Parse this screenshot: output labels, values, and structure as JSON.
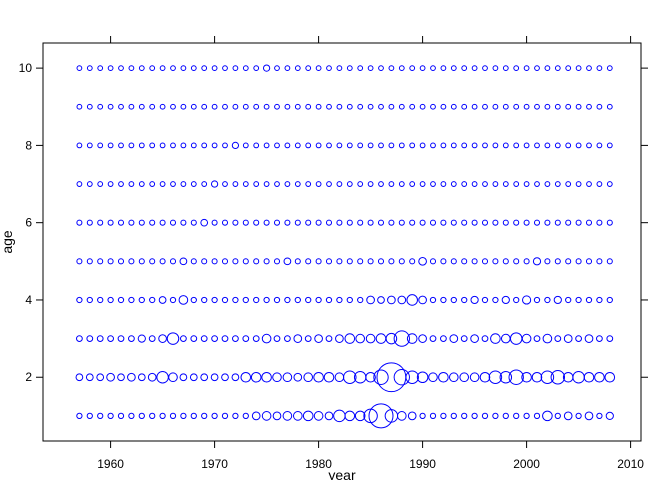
{
  "chart_data": {
    "type": "scatter",
    "subtype": "bubble",
    "xlabel": "year",
    "ylabel": "age",
    "xlim": [
      1953.5,
      2011
    ],
    "ylim": [
      0.35,
      10.65
    ],
    "x_ticks": [
      1960,
      1970,
      1980,
      1990,
      2000,
      2010
    ],
    "x_tick_labels": [
      "1960",
      "1970",
      "1980",
      "1990",
      "2000",
      "2010"
    ],
    "y_ticks": [
      2,
      4,
      6,
      8,
      10
    ],
    "y_tick_labels": [
      "2",
      "4",
      "6",
      "8",
      "10"
    ],
    "ticks_mirrored": true,
    "grid": false,
    "marker": "open-circle",
    "marker_color": "#0000ff",
    "years": [
      1957,
      2008
    ],
    "ages": [
      1,
      2,
      3,
      4,
      5,
      6,
      7,
      8,
      9,
      10
    ],
    "size_scale": {
      "small": 1,
      "medium": 2,
      "large": 3,
      "xlarge": 4,
      "max": 6
    },
    "default_sizes_by_age": {
      "1": 1.1,
      "2": 1.4,
      "3": 1.2,
      "4": 1.1,
      "5": 1.05,
      "6": 1.05,
      "7": 1.0,
      "8": 1.0,
      "9": 1.0,
      "10": 1.0
    },
    "size_overrides": {
      "1": {
        "1974": 1.6,
        "1975": 1.8,
        "1976": 1.6,
        "1977": 1.8,
        "1978": 1.8,
        "1979": 2.0,
        "1980": 1.8,
        "1981": 1.6,
        "1982": 2.4,
        "1983": 2.0,
        "1984": 2.0,
        "1985": 2.8,
        "1986": 5.0,
        "1987": 2.6,
        "1988": 1.8,
        "1989": 1.6,
        "2002": 2.0,
        "2004": 1.6,
        "2006": 1.6,
        "2008": 1.5
      },
      "2": {
        "1960": 1.6,
        "1962": 1.6,
        "1964": 1.6,
        "1965": 2.4,
        "1966": 1.8,
        "1973": 2.0,
        "1974": 2.0,
        "1975": 2.0,
        "1976": 1.8,
        "1977": 1.8,
        "1978": 1.6,
        "1979": 1.8,
        "1980": 2.0,
        "1981": 2.0,
        "1982": 1.8,
        "1983": 2.6,
        "1984": 2.4,
        "1985": 2.0,
        "1986": 3.0,
        "1987": 6.0,
        "1988": 3.2,
        "1989": 2.6,
        "1990": 2.2,
        "1991": 1.8,
        "1992": 2.0,
        "1993": 1.8,
        "1994": 1.8,
        "1995": 1.8,
        "1996": 2.0,
        "1997": 2.6,
        "1998": 2.4,
        "1999": 3.0,
        "2000": 2.0,
        "2001": 2.0,
        "2002": 2.6,
        "2003": 2.8,
        "2004": 2.0,
        "2005": 2.4,
        "2006": 2.0,
        "2007": 2.0,
        "2008": 2.0
      },
      "3": {
        "1963": 1.5,
        "1965": 1.6,
        "1966": 2.4,
        "1975": 1.8,
        "1978": 1.6,
        "1980": 1.6,
        "1982": 1.6,
        "1983": 2.0,
        "1984": 1.8,
        "1985": 1.8,
        "1986": 2.0,
        "1987": 2.2,
        "1988": 3.2,
        "1989": 2.0,
        "1990": 1.6,
        "1993": 1.6,
        "1995": 1.6,
        "1997": 2.0,
        "1998": 1.8,
        "1999": 2.4,
        "2000": 1.8,
        "2002": 1.8,
        "2004": 1.6,
        "2006": 1.6
      },
      "4": {
        "1965": 1.4,
        "1967": 1.8,
        "1985": 1.6,
        "1986": 1.4,
        "1987": 1.6,
        "1988": 1.6,
        "1989": 2.2,
        "1990": 1.6,
        "1995": 1.5,
        "1998": 1.5,
        "2000": 1.7,
        "2003": 1.5
      },
      "5": {
        "1967": 1.4,
        "1977": 1.4,
        "1990": 1.6,
        "2001": 1.5
      },
      "6": {
        "1969": 1.4
      },
      "7": {
        "1970": 1.3
      },
      "8": {
        "1972": 1.3
      },
      "9": {},
      "10": {
        "1975": 1.3
      }
    }
  }
}
